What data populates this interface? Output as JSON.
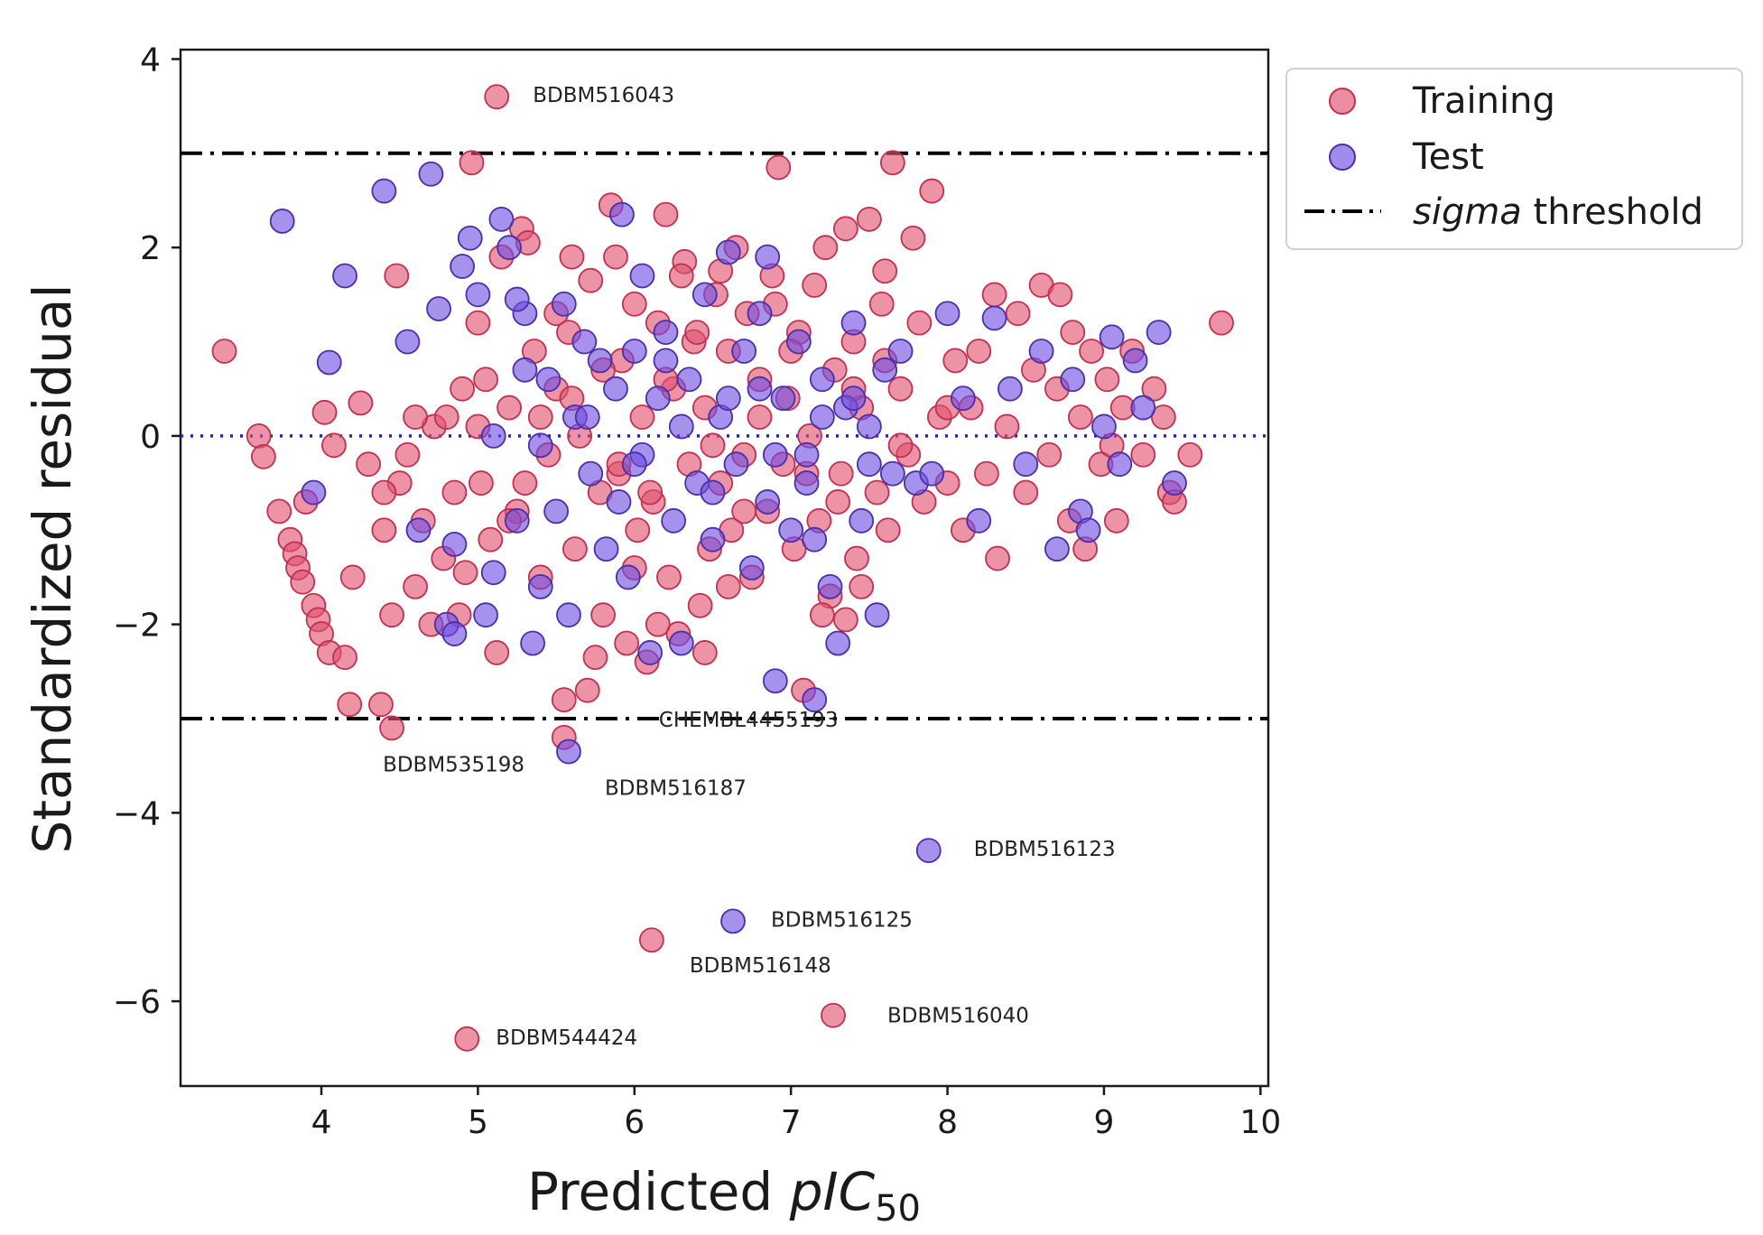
{
  "chart_data": {
    "type": "scatter",
    "xlabel_main": "Predicted ",
    "xlabel_italic": "pIC",
    "xlabel_sub": "50",
    "ylabel": "Standardized residual",
    "xlim": [
      3.1,
      10.05
    ],
    "ylim": [
      -6.9,
      4.1
    ],
    "xticks": [
      "4",
      "5",
      "6",
      "7",
      "8",
      "9",
      "10"
    ],
    "yticks": [
      "4",
      "2",
      "0",
      "−2",
      "−4",
      "−6"
    ],
    "grid": false,
    "legend_position": "outside-top-right",
    "colors": {
      "training_fill": "#e0506f",
      "training_edge": "#c2304f",
      "test_fill": "#6f4de0",
      "test_edge": "#4a2fa8",
      "zero_line": "#1f1fe0",
      "threshold": "#000000"
    },
    "reference_lines": {
      "zero_y": 0,
      "sigma_upper": 3,
      "sigma_lower": -3
    },
    "legend": {
      "training": "Training",
      "test": "Test",
      "sigma_italic": "sigma",
      "sigma_rest": " threshold"
    },
    "outliers": [
      {
        "label": "BDBM516043",
        "x": 5.12,
        "y": 3.6,
        "series": "Training"
      },
      {
        "label": "CHEMBL4455193",
        "x": 5.55,
        "y": -3.2,
        "series": "Training"
      },
      {
        "label": "BDBM535198",
        "x": 4.45,
        "y": -3.1,
        "series": "Training"
      },
      {
        "label": "BDBM516187",
        "x": 5.58,
        "y": -3.35,
        "series": "Test"
      },
      {
        "label": "BDBM516123",
        "x": 7.88,
        "y": -4.4,
        "series": "Test"
      },
      {
        "label": "BDBM516125",
        "x": 6.63,
        "y": -5.15,
        "series": "Test"
      },
      {
        "label": "BDBM516148",
        "x": 6.11,
        "y": -5.35,
        "series": "Training"
      },
      {
        "label": "BDBM516040",
        "x": 7.27,
        "y": -6.15,
        "series": "Training"
      },
      {
        "label": "BDBM544424",
        "x": 4.93,
        "y": -6.4,
        "series": "Training"
      }
    ],
    "series": [
      {
        "name": "Training",
        "points": [
          [
            3.38,
            0.9
          ],
          [
            3.6,
            0.0
          ],
          [
            3.63,
            -0.22
          ],
          [
            3.73,
            -0.8
          ],
          [
            3.8,
            -1.1
          ],
          [
            3.83,
            -1.25
          ],
          [
            3.85,
            -1.4
          ],
          [
            3.88,
            -1.55
          ],
          [
            3.9,
            -0.7
          ],
          [
            3.95,
            -1.8
          ],
          [
            3.98,
            -1.95
          ],
          [
            4.0,
            -2.1
          ],
          [
            4.05,
            -2.3
          ],
          [
            4.02,
            0.25
          ],
          [
            4.08,
            -0.1
          ],
          [
            4.15,
            -2.35
          ],
          [
            4.18,
            -2.85
          ],
          [
            4.2,
            -1.5
          ],
          [
            4.25,
            0.35
          ],
          [
            4.3,
            -0.3
          ],
          [
            4.38,
            -2.85
          ],
          [
            4.4,
            -1.0
          ],
          [
            4.45,
            -1.9
          ],
          [
            4.48,
            1.7
          ],
          [
            4.5,
            -0.5
          ],
          [
            4.55,
            -0.2
          ],
          [
            4.6,
            -1.6
          ],
          [
            4.65,
            -0.9
          ],
          [
            4.7,
            -2.0
          ],
          [
            4.72,
            0.1
          ],
          [
            4.78,
            -1.3
          ],
          [
            4.8,
            0.2
          ],
          [
            4.85,
            -0.6
          ],
          [
            4.88,
            -1.9
          ],
          [
            4.92,
            -1.45
          ],
          [
            4.96,
            2.9
          ],
          [
            5.0,
            1.2
          ],
          [
            5.02,
            -0.5
          ],
          [
            5.05,
            0.6
          ],
          [
            5.08,
            -1.1
          ],
          [
            5.12,
            -2.3
          ],
          [
            5.15,
            1.9
          ],
          [
            5.2,
            0.3
          ],
          [
            5.25,
            -0.8
          ],
          [
            5.28,
            2.2
          ],
          [
            5.32,
            2.05
          ],
          [
            5.36,
            0.9
          ],
          [
            5.4,
            -1.5
          ],
          [
            5.45,
            -0.2
          ],
          [
            5.5,
            0.5
          ],
          [
            5.55,
            -2.8
          ],
          [
            5.58,
            1.1
          ],
          [
            5.62,
            -1.2
          ],
          [
            5.65,
            0.0
          ],
          [
            5.7,
            -2.7
          ],
          [
            5.72,
            1.65
          ],
          [
            5.78,
            -0.6
          ],
          [
            5.8,
            -1.9
          ],
          [
            5.85,
            2.45
          ],
          [
            5.88,
            1.9
          ],
          [
            5.9,
            -0.4
          ],
          [
            5.92,
            0.8
          ],
          [
            5.95,
            -2.2
          ],
          [
            6.0,
            1.4
          ],
          [
            6.02,
            -1.0
          ],
          [
            6.05,
            0.2
          ],
          [
            6.08,
            -2.4
          ],
          [
            6.12,
            -0.7
          ],
          [
            6.15,
            1.2
          ],
          [
            6.2,
            2.35
          ],
          [
            6.22,
            -1.5
          ],
          [
            6.25,
            0.5
          ],
          [
            6.28,
            -2.1
          ],
          [
            6.32,
            1.85
          ],
          [
            6.35,
            -0.3
          ],
          [
            6.38,
            1.0
          ],
          [
            6.42,
            -1.8
          ],
          [
            6.45,
            0.3
          ],
          [
            6.48,
            -1.2
          ],
          [
            6.52,
            1.5
          ],
          [
            6.55,
            -0.5
          ],
          [
            6.6,
            0.9
          ],
          [
            6.62,
            -1.0
          ],
          [
            6.65,
            2.0
          ],
          [
            6.7,
            -0.2
          ],
          [
            6.72,
            1.3
          ],
          [
            6.75,
            -1.5
          ],
          [
            6.8,
            0.6
          ],
          [
            6.85,
            -0.8
          ],
          [
            6.88,
            1.7
          ],
          [
            6.92,
            2.85
          ],
          [
            6.95,
            -0.3
          ],
          [
            6.98,
            0.4
          ],
          [
            7.02,
            -1.2
          ],
          [
            7.05,
            1.1
          ],
          [
            7.08,
            -2.7
          ],
          [
            7.12,
            0.0
          ],
          [
            7.15,
            1.6
          ],
          [
            7.18,
            -0.9
          ],
          [
            7.22,
            2.0
          ],
          [
            7.25,
            -1.7
          ],
          [
            7.28,
            0.7
          ],
          [
            7.32,
            -0.4
          ],
          [
            7.35,
            2.2
          ],
          [
            7.4,
            1.0
          ],
          [
            7.42,
            -1.3
          ],
          [
            7.45,
            0.3
          ],
          [
            7.5,
            2.3
          ],
          [
            7.55,
            -0.6
          ],
          [
            7.58,
            1.4
          ],
          [
            7.62,
            -1.0
          ],
          [
            7.65,
            2.9
          ],
          [
            7.7,
            0.5
          ],
          [
            7.75,
            -0.2
          ],
          [
            7.78,
            2.1
          ],
          [
            7.82,
            1.2
          ],
          [
            7.85,
            -0.7
          ],
          [
            7.9,
            2.6
          ],
          [
            7.95,
            0.2
          ],
          [
            8.0,
            -0.5
          ],
          [
            8.05,
            0.8
          ],
          [
            8.1,
            -1.0
          ],
          [
            8.15,
            0.3
          ],
          [
            8.2,
            0.9
          ],
          [
            8.25,
            -0.4
          ],
          [
            8.3,
            1.5
          ],
          [
            8.32,
            -1.3
          ],
          [
            8.38,
            0.1
          ],
          [
            8.45,
            1.3
          ],
          [
            8.5,
            -0.6
          ],
          [
            8.55,
            0.7
          ],
          [
            8.6,
            1.6
          ],
          [
            8.65,
            -0.2
          ],
          [
            8.7,
            0.5
          ],
          [
            8.72,
            1.5
          ],
          [
            8.78,
            -0.9
          ],
          [
            8.8,
            1.1
          ],
          [
            8.85,
            0.2
          ],
          [
            8.88,
            -1.2
          ],
          [
            8.92,
            0.9
          ],
          [
            8.98,
            -0.3
          ],
          [
            9.02,
            0.6
          ],
          [
            9.05,
            -0.1
          ],
          [
            9.08,
            -0.9
          ],
          [
            9.12,
            0.3
          ],
          [
            9.18,
            0.9
          ],
          [
            9.25,
            -0.2
          ],
          [
            9.32,
            0.5
          ],
          [
            9.38,
            0.2
          ],
          [
            9.42,
            -0.6
          ],
          [
            9.45,
            -0.7
          ],
          [
            9.55,
            -0.2
          ],
          [
            9.75,
            1.2
          ],
          [
            5.0,
            0.1
          ],
          [
            5.3,
            -0.5
          ],
          [
            5.6,
            0.4
          ],
          [
            5.9,
            -0.3
          ],
          [
            6.2,
            0.6
          ],
          [
            6.5,
            -0.1
          ],
          [
            6.8,
            0.2
          ],
          [
            7.1,
            -0.4
          ],
          [
            7.4,
            0.5
          ],
          [
            7.7,
            -0.1
          ],
          [
            8.0,
            0.3
          ],
          [
            5.2,
            -0.9
          ],
          [
            5.5,
            1.3
          ],
          [
            5.8,
            0.7
          ],
          [
            6.1,
            -0.6
          ],
          [
            6.4,
            1.1
          ],
          [
            6.7,
            -0.8
          ],
          [
            7.0,
            0.9
          ],
          [
            7.3,
            -0.7
          ],
          [
            7.6,
            0.8
          ],
          [
            6.0,
            -1.4
          ],
          [
            6.3,
            1.7
          ],
          [
            6.6,
            -1.6
          ],
          [
            6.9,
            1.4
          ],
          [
            7.2,
            -1.9
          ],
          [
            5.4,
            0.2
          ],
          [
            4.9,
            0.5
          ],
          [
            4.6,
            0.2
          ],
          [
            4.4,
            -0.6
          ],
          [
            6.45,
            -2.3
          ],
          [
            6.15,
            -2.0
          ],
          [
            5.75,
            -2.35
          ],
          [
            7.35,
            -1.95
          ],
          [
            7.45,
            -1.6
          ],
          [
            7.6,
            1.75
          ],
          [
            6.55,
            1.75
          ],
          [
            5.6,
            1.9
          ]
        ]
      },
      {
        "name": "Test",
        "points": [
          [
            3.75,
            2.28
          ],
          [
            3.95,
            -0.6
          ],
          [
            4.05,
            0.78
          ],
          [
            4.15,
            1.7
          ],
          [
            4.4,
            2.6
          ],
          [
            4.55,
            1.0
          ],
          [
            4.62,
            -1.0
          ],
          [
            4.7,
            2.78
          ],
          [
            4.75,
            1.35
          ],
          [
            4.8,
            -2.0
          ],
          [
            4.85,
            -2.1
          ],
          [
            4.9,
            1.8
          ],
          [
            4.95,
            2.1
          ],
          [
            5.0,
            1.5
          ],
          [
            5.05,
            -1.9
          ],
          [
            5.1,
            -1.45
          ],
          [
            5.15,
            2.3
          ],
          [
            5.2,
            2.0
          ],
          [
            5.25,
            -0.9
          ],
          [
            5.3,
            1.3
          ],
          [
            5.35,
            -2.2
          ],
          [
            5.4,
            -1.6
          ],
          [
            5.45,
            0.6
          ],
          [
            5.5,
            -0.8
          ],
          [
            5.55,
            1.4
          ],
          [
            5.58,
            -1.9
          ],
          [
            5.62,
            0.2
          ],
          [
            5.68,
            1.0
          ],
          [
            5.72,
            -0.4
          ],
          [
            5.78,
            0.8
          ],
          [
            5.82,
            -1.2
          ],
          [
            5.88,
            0.5
          ],
          [
            5.92,
            2.35
          ],
          [
            5.96,
            -1.5
          ],
          [
            6.0,
            0.9
          ],
          [
            6.05,
            -0.2
          ],
          [
            6.1,
            -2.3
          ],
          [
            6.15,
            0.4
          ],
          [
            6.2,
            1.1
          ],
          [
            6.25,
            -0.9
          ],
          [
            6.3,
            -2.2
          ],
          [
            6.35,
            0.6
          ],
          [
            6.4,
            -0.5
          ],
          [
            6.45,
            1.5
          ],
          [
            6.5,
            -1.1
          ],
          [
            6.55,
            0.2
          ],
          [
            6.6,
            1.95
          ],
          [
            6.65,
            -0.3
          ],
          [
            6.7,
            0.9
          ],
          [
            6.75,
            -1.4
          ],
          [
            6.8,
            1.3
          ],
          [
            6.85,
            -0.7
          ],
          [
            6.9,
            -2.6
          ],
          [
            6.95,
            0.4
          ],
          [
            7.0,
            -1.0
          ],
          [
            7.05,
            1.0
          ],
          [
            7.1,
            -0.2
          ],
          [
            7.15,
            -2.8
          ],
          [
            7.2,
            0.6
          ],
          [
            7.25,
            -1.6
          ],
          [
            7.3,
            -2.2
          ],
          [
            7.35,
            0.3
          ],
          [
            7.4,
            1.2
          ],
          [
            7.45,
            -0.9
          ],
          [
            7.5,
            0.1
          ],
          [
            7.55,
            -1.9
          ],
          [
            7.6,
            0.7
          ],
          [
            7.65,
            -0.4
          ],
          [
            7.7,
            0.9
          ],
          [
            7.8,
            -0.5
          ],
          [
            7.9,
            -0.4
          ],
          [
            8.0,
            1.3
          ],
          [
            8.1,
            0.4
          ],
          [
            8.2,
            -0.9
          ],
          [
            8.3,
            1.25
          ],
          [
            8.4,
            0.5
          ],
          [
            8.5,
            -0.3
          ],
          [
            8.6,
            0.9
          ],
          [
            8.7,
            -1.2
          ],
          [
            8.8,
            0.6
          ],
          [
            8.85,
            -0.8
          ],
          [
            8.9,
            -1.0
          ],
          [
            9.0,
            0.1
          ],
          [
            9.05,
            1.05
          ],
          [
            9.1,
            -0.3
          ],
          [
            9.2,
            0.8
          ],
          [
            9.25,
            0.3
          ],
          [
            9.35,
            1.1
          ],
          [
            9.45,
            -0.5
          ],
          [
            5.1,
            0.0
          ],
          [
            5.4,
            -0.1
          ],
          [
            5.7,
            0.2
          ],
          [
            6.0,
            -0.3
          ],
          [
            6.3,
            0.1
          ],
          [
            6.6,
            0.4
          ],
          [
            6.9,
            -0.2
          ],
          [
            7.2,
            0.2
          ],
          [
            7.5,
            -0.3
          ],
          [
            5.3,
            0.7
          ],
          [
            5.9,
            -0.7
          ],
          [
            6.2,
            0.8
          ],
          [
            6.5,
            -0.6
          ],
          [
            6.8,
            0.5
          ],
          [
            7.1,
            -0.5
          ],
          [
            7.4,
            0.4
          ],
          [
            6.05,
            1.7
          ],
          [
            6.85,
            1.9
          ],
          [
            7.15,
            -1.1
          ],
          [
            5.25,
            1.45
          ],
          [
            4.85,
            -1.15
          ]
        ]
      }
    ]
  }
}
